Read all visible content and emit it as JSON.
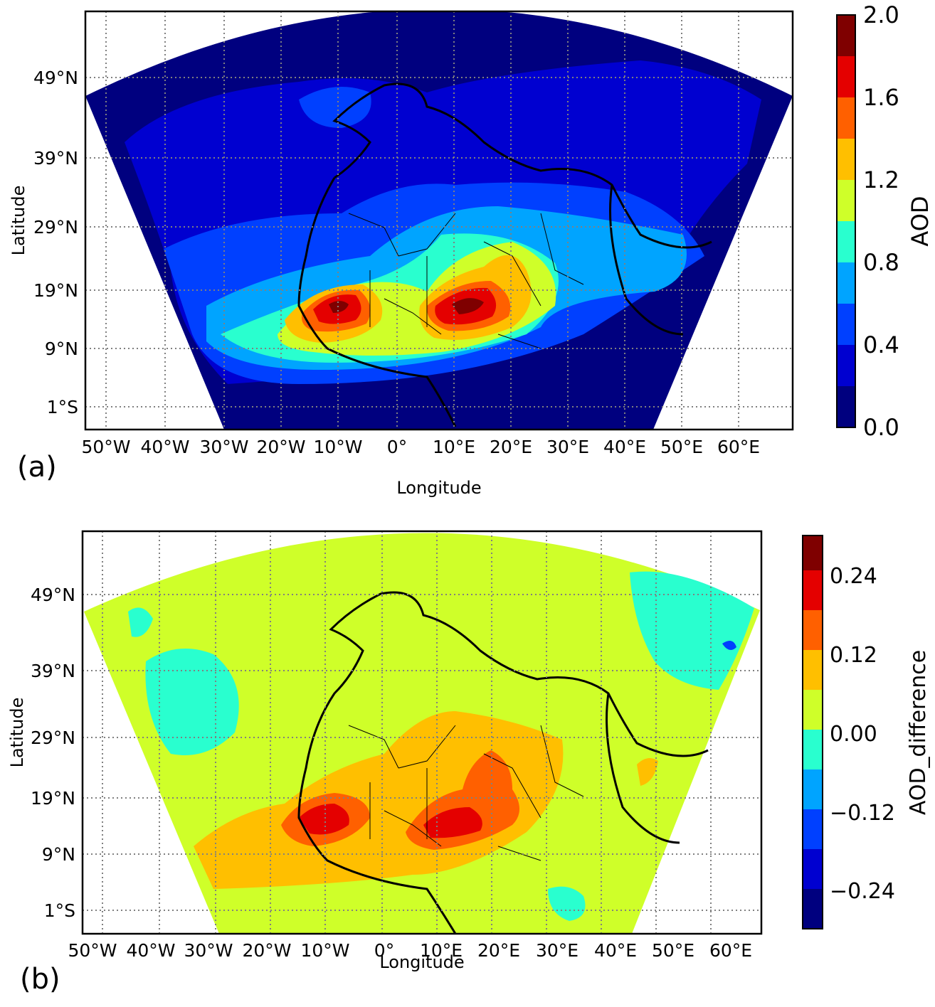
{
  "panels": [
    {
      "label": "(a)",
      "xlabel": "Longitude",
      "ylabel": "Latitude",
      "lon_ticks": [
        "50°W",
        "40°W",
        "30°W",
        "20°W",
        "10°W",
        "0°",
        "10°E",
        "20°E",
        "30°E",
        "40°E",
        "50°E",
        "60°E"
      ],
      "lat_ticks": [
        "49°N",
        "39°N",
        "29°N",
        "19°N",
        "9°N",
        "1°S"
      ],
      "colorbar": {
        "label": "AOD",
        "ticks": [
          "0.0",
          "0.4",
          "0.8",
          "1.2",
          "1.6",
          "2.0"
        ],
        "colors": [
          "#00007f",
          "#0000d0",
          "#0040ff",
          "#00a4ff",
          "#29ffcf",
          "#cfff29",
          "#ffbf00",
          "#ff6000",
          "#e40000",
          "#7f0000"
        ]
      }
    },
    {
      "label": "(b)",
      "xlabel": "Longitude",
      "ylabel": "Latitude",
      "lon_ticks": [
        "50°W",
        "40°W",
        "30°W",
        "20°W",
        "10°W",
        "0°",
        "10°E",
        "20°E",
        "30°E",
        "40°E",
        "50°E",
        "60°E"
      ],
      "lat_ticks": [
        "49°N",
        "39°N",
        "29°N",
        "19°N",
        "9°N",
        "1°S"
      ],
      "colorbar": {
        "label": "AOD_difference",
        "ticks": [
          "0.24",
          "0.12",
          "0.00",
          "−0.12",
          "−0.24"
        ],
        "colors": [
          "#00007f",
          "#0000d0",
          "#0040ff",
          "#00a4ff",
          "#29ffcf",
          "#cfff29",
          "#ffbf00",
          "#ff6000",
          "#e40000",
          "#7f0000"
        ]
      }
    }
  ],
  "colors": {
    "frame": "#000000",
    "grid": "#808080"
  }
}
